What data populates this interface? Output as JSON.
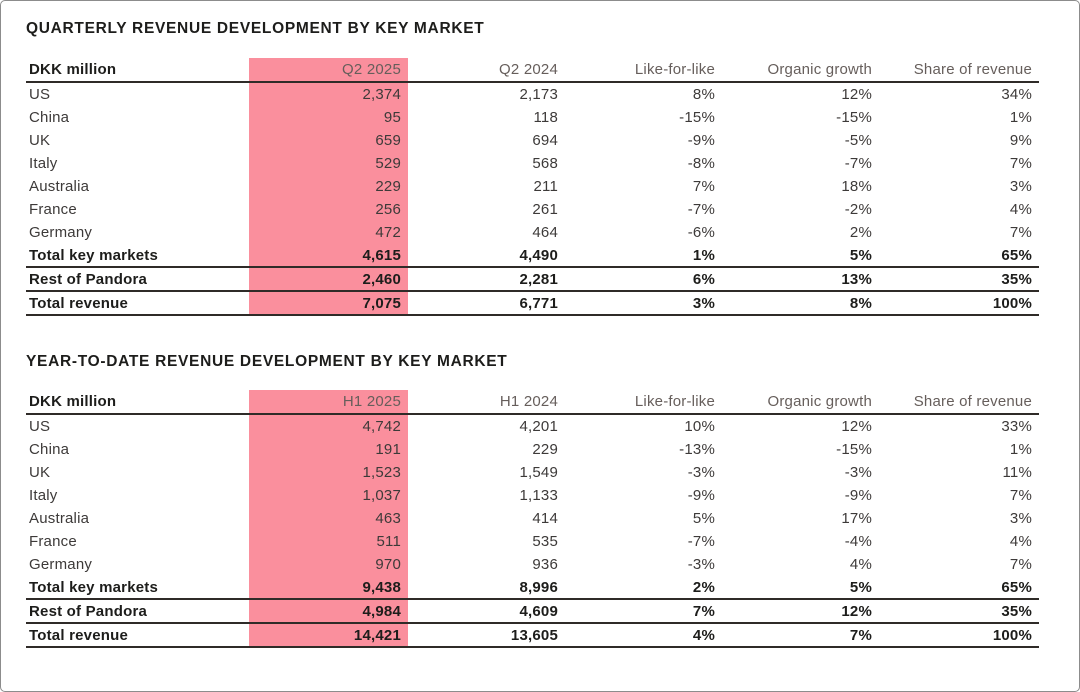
{
  "page": {
    "background": "#FFFFFF",
    "border_color": "#8C8C8C"
  },
  "colors": {
    "highlight_pink": "#FA8F9D",
    "rule_dark": "#2F2B28",
    "text_primary": "#1D1D1B",
    "text_body": "#3D3A39",
    "text_header_muted": "#665E5B",
    "page_bg": "#FFFFFF",
    "page_border": "#8C8C8C"
  },
  "tables": [
    {
      "title": "QUARTERLY REVENUE DEVELOPMENT BY KEY MARKET",
      "columns": [
        "DKK million",
        "Q2 2025",
        "Q2 2024",
        "Like-for-like",
        "Organic growth",
        "Share of revenue"
      ],
      "highlight_col": 1,
      "highlighted_column_label": "Q2 2025",
      "rows": [
        {
          "label": "US",
          "values": [
            "2,374",
            "2,173",
            "8%",
            "12%",
            "34%"
          ],
          "is_total": false
        },
        {
          "label": "China",
          "values": [
            "95",
            "118",
            "-15%",
            "-15%",
            "1%"
          ],
          "is_total": false
        },
        {
          "label": "UK",
          "values": [
            "659",
            "694",
            "-9%",
            "-5%",
            "9%"
          ],
          "is_total": false
        },
        {
          "label": "Italy",
          "values": [
            "529",
            "568",
            "-8%",
            "-7%",
            "7%"
          ],
          "is_total": false
        },
        {
          "label": "Australia",
          "values": [
            "229",
            "211",
            "7%",
            "18%",
            "3%"
          ],
          "is_total": false
        },
        {
          "label": "France",
          "values": [
            "256",
            "261",
            "-7%",
            "-2%",
            "4%"
          ],
          "is_total": false
        },
        {
          "label": "Germany",
          "values": [
            "472",
            "464",
            "-6%",
            "2%",
            "7%"
          ],
          "is_total": false
        },
        {
          "label": "Total key markets",
          "values": [
            "4,615",
            "4,490",
            "1%",
            "5%",
            "65%"
          ],
          "is_total": true
        },
        {
          "label": "Rest of Pandora",
          "values": [
            "2,460",
            "2,281",
            "6%",
            "13%",
            "35%"
          ],
          "is_total": true
        },
        {
          "label": "Total revenue",
          "values": [
            "7,075",
            "6,771",
            "3%",
            "8%",
            "100%"
          ],
          "is_total": true
        }
      ]
    },
    {
      "title": "YEAR-TO-DATE REVENUE DEVELOPMENT BY KEY MARKET",
      "columns": [
        "DKK million",
        "H1 2025",
        "H1 2024",
        "Like-for-like",
        "Organic growth",
        "Share of revenue"
      ],
      "highlight_col": 1,
      "highlighted_column_label": "H1 2025",
      "rows": [
        {
          "label": "US",
          "values": [
            "4,742",
            "4,201",
            "10%",
            "12%",
            "33%"
          ],
          "is_total": false
        },
        {
          "label": "China",
          "values": [
            "191",
            "229",
            "-13%",
            "-15%",
            "1%"
          ],
          "is_total": false
        },
        {
          "label": "UK",
          "values": [
            "1,523",
            "1,549",
            "-3%",
            "-3%",
            "11%"
          ],
          "is_total": false
        },
        {
          "label": "Italy",
          "values": [
            "1,037",
            "1,133",
            "-9%",
            "-9%",
            "7%"
          ],
          "is_total": false
        },
        {
          "label": "Australia",
          "values": [
            "463",
            "414",
            "5%",
            "17%",
            "3%"
          ],
          "is_total": false
        },
        {
          "label": "France",
          "values": [
            "511",
            "535",
            "-7%",
            "-4%",
            "4%"
          ],
          "is_total": false
        },
        {
          "label": "Germany",
          "values": [
            "970",
            "936",
            "-3%",
            "4%",
            "7%"
          ],
          "is_total": false
        },
        {
          "label": "Total key markets",
          "values": [
            "9,438",
            "8,996",
            "2%",
            "5%",
            "65%"
          ],
          "is_total": true
        },
        {
          "label": "Rest of Pandora",
          "values": [
            "4,984",
            "4,609",
            "7%",
            "12%",
            "35%"
          ],
          "is_total": true
        },
        {
          "label": "Total revenue",
          "values": [
            "14,421",
            "13,605",
            "4%",
            "7%",
            "100%"
          ],
          "is_total": true
        }
      ]
    }
  ]
}
